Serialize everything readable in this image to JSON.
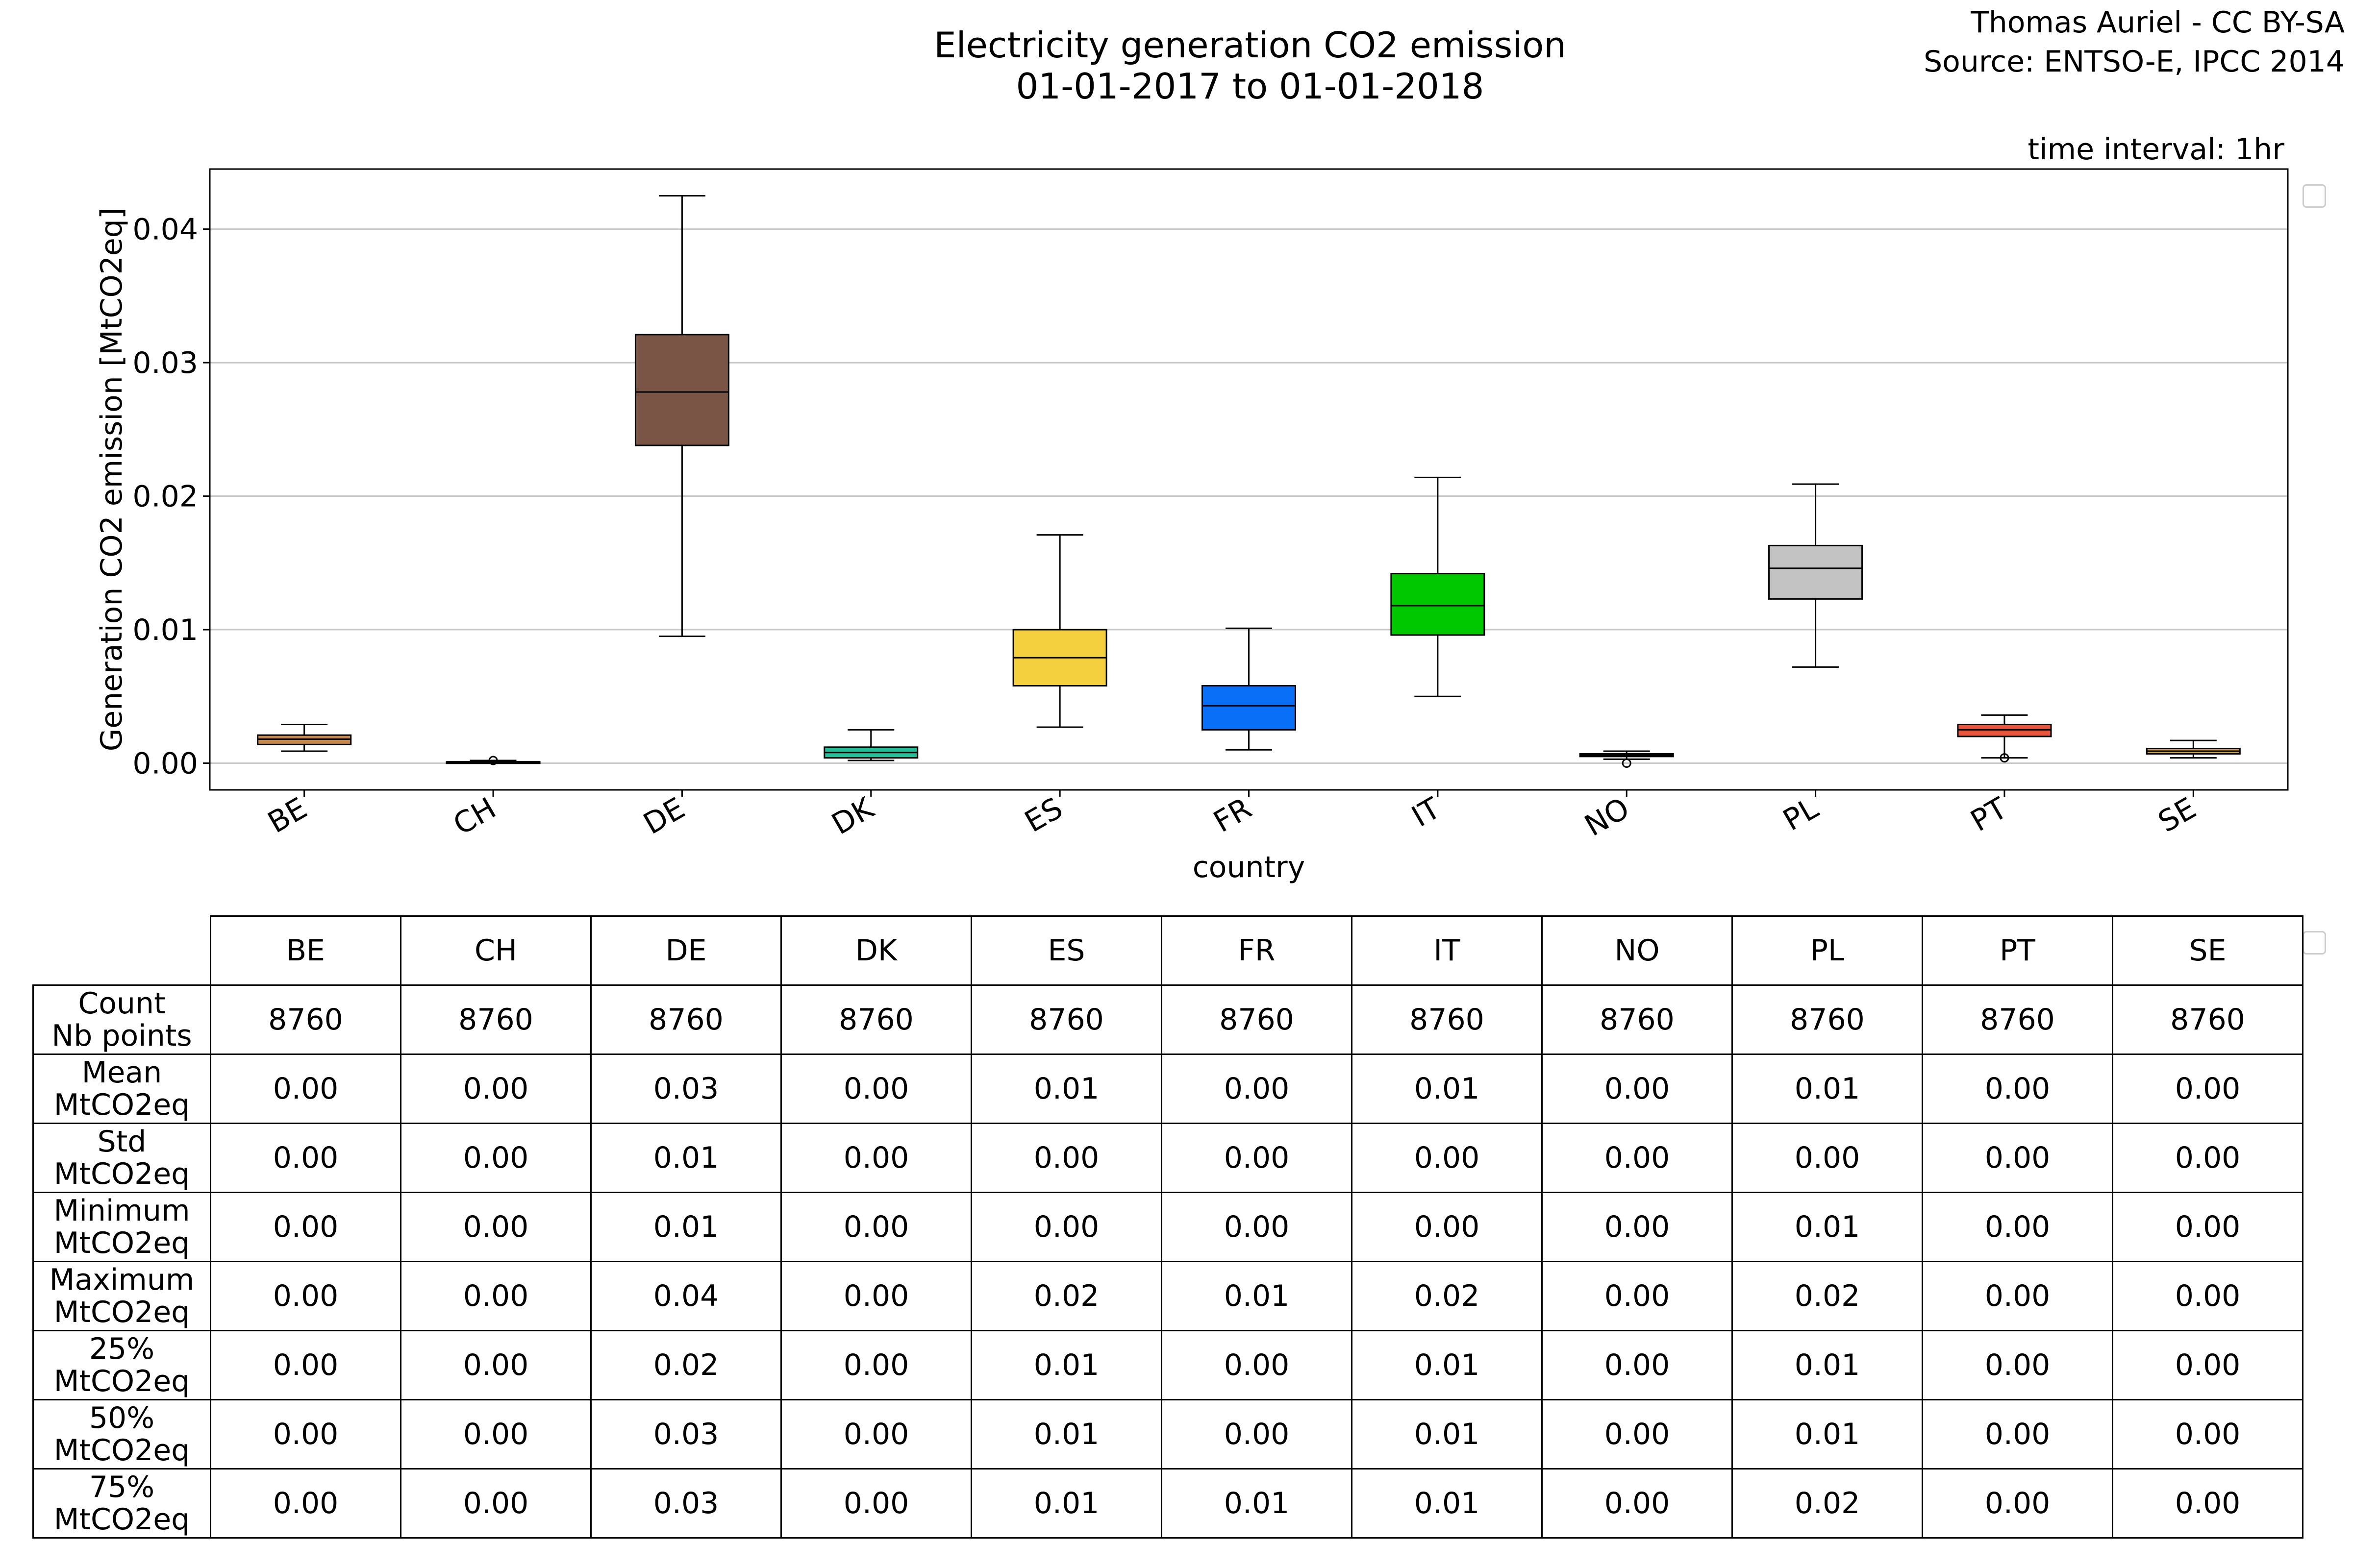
{
  "header": {
    "title_line1": "Electricity generation CO2 emission",
    "title_line2": "01-01-2017 to 01-01-2018",
    "credit_line1": "Thomas Auriel - CC BY-SA",
    "credit_line2": "Source: ENTSO-E, IPCC 2014",
    "interval": "time interval: 1hr"
  },
  "chart_data": {
    "type": "boxplot",
    "xlabel": "country",
    "ylabel": "Generation CO2 emission [MtCO2eq]",
    "ylim": [
      -0.002,
      0.0445
    ],
    "yticks": [
      0.0,
      0.01,
      0.02,
      0.03,
      0.04
    ],
    "ytick_labels": [
      "0.00",
      "0.01",
      "0.02",
      "0.03",
      "0.04"
    ],
    "grid": "horizontal",
    "categories": [
      "BE",
      "CH",
      "DE",
      "DK",
      "ES",
      "FR",
      "IT",
      "NO",
      "PL",
      "PT",
      "SE"
    ],
    "boxes": [
      {
        "label": "BE",
        "whislo": 0.0009,
        "q1": 0.0014,
        "med": 0.0018,
        "q3": 0.0021,
        "whishi": 0.0029,
        "fliers": [],
        "color": "#c88a4d"
      },
      {
        "label": "CH",
        "whislo": 0.0,
        "q1": 0.0001,
        "med": 0.0001,
        "q3": 0.0001,
        "whishi": 0.0002,
        "fliers": [
          0.0002
        ],
        "color": "#e6e6e6"
      },
      {
        "label": "DE",
        "whislo": 0.0095,
        "q1": 0.0238,
        "med": 0.0278,
        "q3": 0.0321,
        "whishi": 0.0425,
        "fliers": [],
        "color": "#7a5545"
      },
      {
        "label": "DK",
        "whislo": 0.0002,
        "q1": 0.0004,
        "med": 0.0008,
        "q3": 0.0012,
        "whishi": 0.0025,
        "fliers": [],
        "color": "#24c29a"
      },
      {
        "label": "ES",
        "whislo": 0.0027,
        "q1": 0.0058,
        "med": 0.0079,
        "q3": 0.01,
        "whishi": 0.0171,
        "fliers": [],
        "color": "#f4d03f"
      },
      {
        "label": "FR",
        "whislo": 0.001,
        "q1": 0.0025,
        "med": 0.0043,
        "q3": 0.0058,
        "whishi": 0.0101,
        "fliers": [],
        "color": "#0a6ff7"
      },
      {
        "label": "IT",
        "whislo": 0.005,
        "q1": 0.0096,
        "med": 0.0118,
        "q3": 0.0142,
        "whishi": 0.0214,
        "fliers": [],
        "color": "#00c800"
      },
      {
        "label": "NO",
        "whislo": 0.0003,
        "q1": 0.0005,
        "med": 0.0006,
        "q3": 0.0007,
        "whishi": 0.0009,
        "fliers": [
          0.0
        ],
        "color": "#3b7dd8"
      },
      {
        "label": "PL",
        "whislo": 0.0072,
        "q1": 0.0123,
        "med": 0.0146,
        "q3": 0.0163,
        "whishi": 0.0209,
        "fliers": [],
        "color": "#c3c3c3"
      },
      {
        "label": "PT",
        "whislo": 0.0004,
        "q1": 0.002,
        "med": 0.0025,
        "q3": 0.0029,
        "whishi": 0.0036,
        "fliers": [
          0.0004
        ],
        "color": "#e8553f"
      },
      {
        "label": "SE",
        "whislo": 0.0004,
        "q1": 0.0007,
        "med": 0.0009,
        "q3": 0.0011,
        "whishi": 0.0017,
        "fliers": [],
        "color": "#d9a23a"
      }
    ]
  },
  "table": {
    "columns": [
      "BE",
      "CH",
      "DE",
      "DK",
      "ES",
      "FR",
      "IT",
      "NO",
      "PL",
      "PT",
      "SE"
    ],
    "rows": [
      {
        "label1": "Count",
        "label2": "Nb points",
        "values": [
          "8760",
          "8760",
          "8760",
          "8760",
          "8760",
          "8760",
          "8760",
          "8760",
          "8760",
          "8760",
          "8760"
        ]
      },
      {
        "label1": "Mean",
        "label2": "MtCO2eq",
        "values": [
          "0.00",
          "0.00",
          "0.03",
          "0.00",
          "0.01",
          "0.00",
          "0.01",
          "0.00",
          "0.01",
          "0.00",
          "0.00"
        ]
      },
      {
        "label1": "Std",
        "label2": "MtCO2eq",
        "values": [
          "0.00",
          "0.00",
          "0.01",
          "0.00",
          "0.00",
          "0.00",
          "0.00",
          "0.00",
          "0.00",
          "0.00",
          "0.00"
        ]
      },
      {
        "label1": "Minimum",
        "label2": "MtCO2eq",
        "values": [
          "0.00",
          "0.00",
          "0.01",
          "0.00",
          "0.00",
          "0.00",
          "0.00",
          "0.00",
          "0.01",
          "0.00",
          "0.00"
        ]
      },
      {
        "label1": "Maximum",
        "label2": "MtCO2eq",
        "values": [
          "0.00",
          "0.00",
          "0.04",
          "0.00",
          "0.02",
          "0.01",
          "0.02",
          "0.00",
          "0.02",
          "0.00",
          "0.00"
        ]
      },
      {
        "label1": "25%",
        "label2": "MtCO2eq",
        "values": [
          "0.00",
          "0.00",
          "0.02",
          "0.00",
          "0.01",
          "0.00",
          "0.01",
          "0.00",
          "0.01",
          "0.00",
          "0.00"
        ]
      },
      {
        "label1": "50%",
        "label2": "MtCO2eq",
        "values": [
          "0.00",
          "0.00",
          "0.03",
          "0.00",
          "0.01",
          "0.00",
          "0.01",
          "0.00",
          "0.01",
          "0.00",
          "0.00"
        ]
      },
      {
        "label1": "75%",
        "label2": "MtCO2eq",
        "values": [
          "0.00",
          "0.00",
          "0.03",
          "0.00",
          "0.01",
          "0.01",
          "0.01",
          "0.00",
          "0.02",
          "0.00",
          "0.00"
        ]
      }
    ]
  }
}
